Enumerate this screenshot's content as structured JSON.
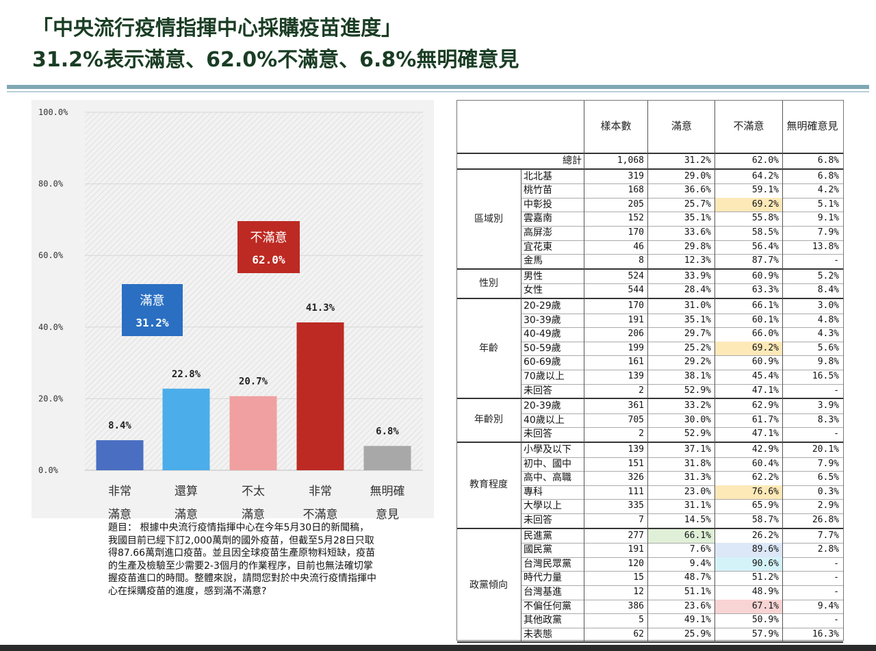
{
  "title": {
    "line1": "「中央流行疫情指揮中心採購疫苗進度」",
    "line2": "31.2%表示滿意、62.0%不滿意、6.8%無明確意見"
  },
  "colors": {
    "very_satisfied": "#4a6fc2",
    "satisfied": "#4badea",
    "not_satisfied": "#f0a0a0",
    "very_unsatisfied": "#bd2a23",
    "no_opinion": "#a8a8a8",
    "callout_blue": "#2a6fc2",
    "callout_red": "#bd2a23",
    "highlight_yellow": "#fde9b8",
    "highlight_green": "#e0f0d8",
    "highlight_blue": "#dce7f7",
    "highlight_cyan": "#d4f3f9",
    "highlight_pink": "#f9d4d4"
  },
  "chart_data": {
    "type": "bar",
    "categories": [
      [
        "非常",
        "滿意"
      ],
      [
        "還算",
        "滿意"
      ],
      [
        "不太",
        "滿意"
      ],
      [
        "非常",
        "不滿意"
      ],
      [
        "無明確",
        "意見"
      ]
    ],
    "values": [
      8.4,
      22.8,
      20.7,
      41.3,
      6.8
    ],
    "value_labels": [
      "8.4%",
      "22.8%",
      "20.7%",
      "41.3%",
      "6.8%"
    ],
    "yticks": [
      "0.0%",
      "20.0%",
      "40.0%",
      "60.0%",
      "80.0%",
      "100.0%"
    ],
    "ylim": [
      0,
      100
    ],
    "callouts": [
      {
        "label": "滿意",
        "value": "31.2%"
      },
      {
        "label": "不滿意",
        "value": "62.0%"
      }
    ]
  },
  "question": [
    "題目： 根據中央流行疫情指揮中心在今年5月30日的新聞稿，",
    "我國目前已經下訂2,000萬劑的國外疫苗，但截至5月28日只取",
    "得87.66萬劑進口疫苗。並且因全球疫苗生產原物料短缺，疫苗",
    "的生產及檢驗至少需要2-3個月的作業程序，目前也無法確切掌",
    "握疫苗進口的時間。整體來說，請問您對於中央流行疫情指揮中",
    "心在採購疫苗的進度，感到滿不滿意?"
  ],
  "table": {
    "headers": [
      "樣本數",
      "滿意",
      "不滿意",
      "無明確意見"
    ],
    "total": {
      "label": "總計",
      "n": "1,068",
      "sat": "31.2%",
      "unsat": "62.0%",
      "none": "6.8%"
    },
    "groups": [
      {
        "name": "區域別",
        "rows": [
          {
            "label": "北北基",
            "n": "319",
            "sat": "29.0%",
            "unsat": "64.2%",
            "none": "6.8%"
          },
          {
            "label": "桃竹苗",
            "n": "168",
            "sat": "36.6%",
            "unsat": "59.1%",
            "none": "4.2%"
          },
          {
            "label": "中彰投",
            "n": "205",
            "sat": "25.7%",
            "unsat": "69.2%",
            "none": "5.1%",
            "hl": {
              "unsat": "yellow"
            }
          },
          {
            "label": "雲嘉南",
            "n": "152",
            "sat": "35.1%",
            "unsat": "55.8%",
            "none": "9.1%"
          },
          {
            "label": "高屏澎",
            "n": "170",
            "sat": "33.6%",
            "unsat": "58.5%",
            "none": "7.9%"
          },
          {
            "label": "宜花東",
            "n": "46",
            "sat": "29.8%",
            "unsat": "56.4%",
            "none": "13.8%"
          },
          {
            "label": "金馬",
            "n": "8",
            "sat": "12.3%",
            "unsat": "87.7%",
            "none": "-"
          }
        ]
      },
      {
        "name": "性別",
        "rows": [
          {
            "label": "男性",
            "n": "524",
            "sat": "33.9%",
            "unsat": "60.9%",
            "none": "5.2%"
          },
          {
            "label": "女性",
            "n": "544",
            "sat": "28.4%",
            "unsat": "63.3%",
            "none": "8.4%"
          }
        ]
      },
      {
        "name": "年齡",
        "rows": [
          {
            "label": "20-29歲",
            "n": "170",
            "sat": "31.0%",
            "unsat": "66.1%",
            "none": "3.0%"
          },
          {
            "label": "30-39歲",
            "n": "191",
            "sat": "35.1%",
            "unsat": "60.1%",
            "none": "4.8%"
          },
          {
            "label": "40-49歲",
            "n": "206",
            "sat": "29.7%",
            "unsat": "66.0%",
            "none": "4.3%"
          },
          {
            "label": "50-59歲",
            "n": "199",
            "sat": "25.2%",
            "unsat": "69.2%",
            "none": "5.6%",
            "hl": {
              "unsat": "yellow"
            }
          },
          {
            "label": "60-69歲",
            "n": "161",
            "sat": "29.2%",
            "unsat": "60.9%",
            "none": "9.8%"
          },
          {
            "label": "70歲以上",
            "n": "139",
            "sat": "38.1%",
            "unsat": "45.4%",
            "none": "16.5%"
          },
          {
            "label": "未回答",
            "n": "2",
            "sat": "52.9%",
            "unsat": "47.1%",
            "none": "-"
          }
        ]
      },
      {
        "name": "年齡別",
        "rows": [
          {
            "label": "20-39歲",
            "n": "361",
            "sat": "33.2%",
            "unsat": "62.9%",
            "none": "3.9%"
          },
          {
            "label": "40歲以上",
            "n": "705",
            "sat": "30.0%",
            "unsat": "61.7%",
            "none": "8.3%"
          },
          {
            "label": "未回答",
            "n": "2",
            "sat": "52.9%",
            "unsat": "47.1%",
            "none": "-"
          }
        ]
      },
      {
        "name": "教育程度",
        "rows": [
          {
            "label": "小學及以下",
            "n": "139",
            "sat": "37.1%",
            "unsat": "42.9%",
            "none": "20.1%"
          },
          {
            "label": "初中、國中",
            "n": "151",
            "sat": "31.8%",
            "unsat": "60.4%",
            "none": "7.9%"
          },
          {
            "label": "高中、高職",
            "n": "326",
            "sat": "31.3%",
            "unsat": "62.2%",
            "none": "6.5%"
          },
          {
            "label": "專科",
            "n": "111",
            "sat": "23.0%",
            "unsat": "76.6%",
            "none": "0.3%",
            "hl": {
              "unsat": "yellow"
            }
          },
          {
            "label": "大學以上",
            "n": "335",
            "sat": "31.1%",
            "unsat": "65.9%",
            "none": "2.9%"
          },
          {
            "label": "未回答",
            "n": "7",
            "sat": "14.5%",
            "unsat": "58.7%",
            "none": "26.8%"
          }
        ]
      },
      {
        "name": "政黨傾向",
        "rows": [
          {
            "label": "民進黨",
            "n": "277",
            "sat": "66.1%",
            "unsat": "26.2%",
            "none": "7.7%",
            "hl": {
              "sat": "green"
            }
          },
          {
            "label": "國民黨",
            "n": "191",
            "sat": "7.6%",
            "unsat": "89.6%",
            "none": "2.8%",
            "hl": {
              "unsat": "blue"
            }
          },
          {
            "label": "台灣民眾黨",
            "n": "120",
            "sat": "9.4%",
            "unsat": "90.6%",
            "none": "-",
            "hl": {
              "unsat": "cyan"
            }
          },
          {
            "label": "時代力量",
            "n": "15",
            "sat": "48.7%",
            "unsat": "51.2%",
            "none": "-"
          },
          {
            "label": "台灣基進",
            "n": "12",
            "sat": "51.1%",
            "unsat": "48.9%",
            "none": "-"
          },
          {
            "label": "不偏任何黨",
            "n": "386",
            "sat": "23.6%",
            "unsat": "67.1%",
            "none": "9.4%",
            "hl": {
              "unsat": "pink"
            }
          },
          {
            "label": "其他政黨",
            "n": "5",
            "sat": "49.1%",
            "unsat": "50.9%",
            "none": "-"
          },
          {
            "label": "未表態",
            "n": "62",
            "sat": "25.9%",
            "unsat": "57.9%",
            "none": "16.3%"
          }
        ]
      }
    ]
  }
}
